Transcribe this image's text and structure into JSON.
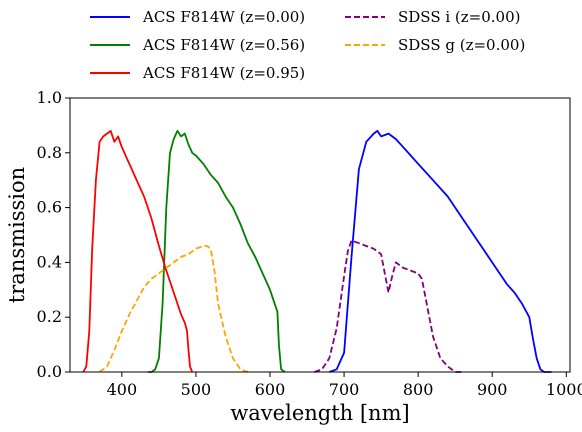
{
  "chart_data": {
    "type": "line",
    "xlabel": "wavelength [nm]",
    "ylabel": "transmission",
    "xlim": [
      330,
      1005
    ],
    "ylim": [
      0,
      1.0
    ],
    "xticks": [
      400,
      500,
      600,
      700,
      800,
      900,
      1000
    ],
    "yticks": [
      0.0,
      0.2,
      0.4,
      0.6,
      0.8,
      1.0
    ],
    "grid": false,
    "legend_placement": "top, outside plot, two columns",
    "series": [
      {
        "name": "ACS F814W (z=0.00)",
        "color": "#0000ff",
        "dash": "solid",
        "x": [
          680,
          690,
          700,
          710,
          720,
          730,
          740,
          745,
          750,
          760,
          770,
          780,
          790,
          800,
          810,
          820,
          830,
          840,
          850,
          860,
          870,
          880,
          890,
          900,
          910,
          920,
          930,
          940,
          950,
          955,
          960,
          965,
          970,
          980
        ],
        "y": [
          0.0,
          0.01,
          0.07,
          0.42,
          0.74,
          0.84,
          0.87,
          0.88,
          0.86,
          0.87,
          0.85,
          0.82,
          0.79,
          0.76,
          0.73,
          0.7,
          0.67,
          0.64,
          0.6,
          0.56,
          0.52,
          0.48,
          0.44,
          0.4,
          0.36,
          0.32,
          0.29,
          0.25,
          0.2,
          0.12,
          0.05,
          0.01,
          0.0,
          0.0
        ]
      },
      {
        "name": "ACS F814W (z=0.56)",
        "color": "#008000",
        "dash": "solid",
        "x": [
          435,
          440,
          445,
          450,
          455,
          460,
          465,
          470,
          475,
          480,
          485,
          490,
          495,
          500,
          510,
          520,
          530,
          540,
          550,
          560,
          570,
          580,
          590,
          600,
          605,
          610,
          612,
          615,
          620
        ],
        "y": [
          0.0,
          0.0,
          0.01,
          0.05,
          0.25,
          0.6,
          0.8,
          0.85,
          0.88,
          0.86,
          0.87,
          0.83,
          0.8,
          0.79,
          0.76,
          0.72,
          0.69,
          0.64,
          0.6,
          0.54,
          0.47,
          0.42,
          0.36,
          0.3,
          0.26,
          0.22,
          0.1,
          0.01,
          0.0
        ]
      },
      {
        "name": "ACS F814W (z=0.95)",
        "color": "#ff0000",
        "dash": "solid",
        "x": [
          348,
          352,
          356,
          360,
          365,
          370,
          375,
          380,
          385,
          390,
          395,
          400,
          410,
          420,
          430,
          440,
          450,
          460,
          470,
          480,
          485,
          488,
          490,
          492,
          495
        ],
        "y": [
          0.0,
          0.02,
          0.15,
          0.45,
          0.7,
          0.84,
          0.86,
          0.87,
          0.88,
          0.84,
          0.86,
          0.82,
          0.76,
          0.7,
          0.64,
          0.56,
          0.46,
          0.37,
          0.29,
          0.21,
          0.18,
          0.15,
          0.08,
          0.02,
          0.0
        ]
      },
      {
        "name": "SDSS i (z=0.00)",
        "color": "#800080",
        "dash": "dashed",
        "x": [
          660,
          670,
          680,
          690,
          700,
          705,
          710,
          720,
          730,
          740,
          750,
          755,
          760,
          765,
          770,
          780,
          790,
          800,
          805,
          810,
          820,
          830,
          840,
          850,
          860
        ],
        "y": [
          0.0,
          0.01,
          0.05,
          0.16,
          0.35,
          0.44,
          0.48,
          0.47,
          0.46,
          0.45,
          0.43,
          0.36,
          0.29,
          0.35,
          0.4,
          0.38,
          0.37,
          0.36,
          0.34,
          0.27,
          0.13,
          0.05,
          0.02,
          0.0,
          0.0
        ]
      },
      {
        "name": "SDSS g (z=0.00)",
        "color": "#ffa500",
        "dash": "dashed",
        "x": [
          370,
          380,
          390,
          400,
          410,
          420,
          430,
          440,
          450,
          460,
          470,
          480,
          490,
          500,
          510,
          515,
          520,
          525,
          530,
          540,
          550,
          560,
          570
        ],
        "y": [
          0.0,
          0.02,
          0.08,
          0.15,
          0.21,
          0.26,
          0.31,
          0.34,
          0.36,
          0.38,
          0.4,
          0.42,
          0.43,
          0.45,
          0.46,
          0.46,
          0.45,
          0.37,
          0.25,
          0.13,
          0.05,
          0.01,
          0.0
        ]
      }
    ]
  }
}
